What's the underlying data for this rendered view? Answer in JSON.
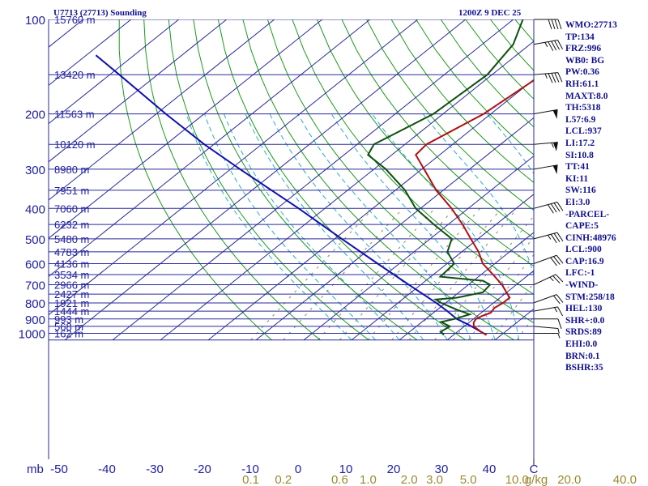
{
  "header": {
    "station": "U7713 (27713) Sounding",
    "time": "1200Z  9 DEC 25"
  },
  "side_panel": [
    "WMO:27713",
    "TP:134",
    "FRZ:996",
    "WB0: BG",
    "PW:0.36",
    "RH:61.1",
    "MAXT:8.0",
    "TH:5318",
    "L57:6.9",
    "LCL:937",
    "LI:17.2",
    "SI:10.8",
    "TT:41",
    "KI:11",
    "SW:116",
    "EI:3.0",
    "-PARCEL-",
    "CAPE:5",
    "CINH:48976",
    "LCL:900",
    "CAP:16.9",
    "LFC:-1",
    "-WIND-",
    "STM:258/18",
    "HEL:130",
    "SHR+:0.0",
    "SRDS:89",
    "EHI:0.0",
    "BRN:0.1",
    "BSHR:35"
  ],
  "colors": {
    "isobar": "#2a2a9a",
    "isotherm": "#2a2a9a",
    "dry_adiabat": "#1a9a1a",
    "moist_adiabat": "#2aaaca",
    "mixing_ratio": "#8a8a50",
    "temperature": "#b01010",
    "dewpoint": "#105010",
    "parcel": "#1010b0",
    "wind_barb": "#101010"
  },
  "chart_data": {
    "type": "skew-t",
    "pressure_label": "mb",
    "mixing_ratio_unit": "g/kg",
    "pressure_levels": [
      100,
      200,
      300,
      400,
      500,
      600,
      700,
      800,
      900,
      1000
    ],
    "pressure_range": [
      100,
      1050
    ],
    "temperature_ticks": [
      -50,
      -40,
      -30,
      -20,
      -10,
      0,
      10,
      20,
      30,
      40
    ],
    "temperature_unit_label": "C",
    "mixing_ratio_ticks": [
      {
        "label": "0.1",
        "value": 0.1
      },
      {
        "label": "0.2",
        "value": 0.2
      },
      {
        "label": "0.6",
        "value": 0.6
      },
      {
        "label": "1.0",
        "value": 1.0
      },
      {
        "label": "2.0",
        "value": 2.0
      },
      {
        "label": "3.0",
        "value": 3.0
      },
      {
        "label": "5.0",
        "value": 5.0
      },
      {
        "label": "10.0",
        "value": 10.0
      },
      {
        "label": "20.0",
        "value": 20.0
      },
      {
        "label": "40.0",
        "value": 40.0
      }
    ],
    "heights": [
      {
        "p": 100,
        "label": "15760 m"
      },
      {
        "p": 150,
        "label": "13420 m"
      },
      {
        "p": 200,
        "label": "11563 m"
      },
      {
        "p": 250,
        "label": "10120 m"
      },
      {
        "p": 300,
        "label": "8980 m"
      },
      {
        "p": 350,
        "label": "7951 m"
      },
      {
        "p": 400,
        "label": "7060 m"
      },
      {
        "p": 450,
        "label": "6232 m"
      },
      {
        "p": 500,
        "label": "5480 m"
      },
      {
        "p": 550,
        "label": "4783 m"
      },
      {
        "p": 600,
        "label": "4136 m"
      },
      {
        "p": 650,
        "label": "3534 m"
      },
      {
        "p": 700,
        "label": "2966 m"
      },
      {
        "p": 750,
        "label": "2427 m"
      },
      {
        "p": 800,
        "label": "1921 m"
      },
      {
        "p": 850,
        "label": "1444 m"
      },
      {
        "p": 900,
        "label": "993 m"
      },
      {
        "p": 950,
        "label": "568 m"
      },
      {
        "p": 1000,
        "label": "162 m"
      }
    ],
    "temperature": [
      {
        "p": 1012,
        "t": 6.9
      },
      {
        "p": 990,
        "t": 5.0
      },
      {
        "p": 950,
        "t": 2.0
      },
      {
        "p": 925,
        "t": 1.0
      },
      {
        "p": 900,
        "t": 0.5
      },
      {
        "p": 880,
        "t": 1.0
      },
      {
        "p": 860,
        "t": 2.0
      },
      {
        "p": 830,
        "t": 1.5
      },
      {
        "p": 800,
        "t": 2.0
      },
      {
        "p": 770,
        "t": 2.0
      },
      {
        "p": 700,
        "t": -3.0
      },
      {
        "p": 650,
        "t": -7.5
      },
      {
        "p": 600,
        "t": -12.5
      },
      {
        "p": 550,
        "t": -16.5
      },
      {
        "p": 500,
        "t": -21.5
      },
      {
        "p": 450,
        "t": -27.0
      },
      {
        "p": 400,
        "t": -33.5
      },
      {
        "p": 350,
        "t": -41.5
      },
      {
        "p": 300,
        "t": -49.5
      },
      {
        "p": 270,
        "t": -55.0
      },
      {
        "p": 250,
        "t": -55.5
      },
      {
        "p": 200,
        "t": -51.5
      },
      {
        "p": 150,
        "t": -49.5
      },
      {
        "p": 120,
        "t": -50.5
      },
      {
        "p": 100,
        "t": -54.0
      }
    ],
    "dewpoint": [
      {
        "p": 1012,
        "t": -2.0
      },
      {
        "p": 990,
        "t": -3.5
      },
      {
        "p": 950,
        "t": -3.0
      },
      {
        "p": 920,
        "t": -6.0
      },
      {
        "p": 900,
        "t": -4.0
      },
      {
        "p": 870,
        "t": -2.0
      },
      {
        "p": 840,
        "t": -6.0
      },
      {
        "p": 800,
        "t": -11.0
      },
      {
        "p": 780,
        "t": -13.0
      },
      {
        "p": 770,
        "t": -9.0
      },
      {
        "p": 740,
        "t": -5.0
      },
      {
        "p": 700,
        "t": -5.5
      },
      {
        "p": 680,
        "t": -8.0
      },
      {
        "p": 660,
        "t": -18.0
      },
      {
        "p": 600,
        "t": -18.5
      },
      {
        "p": 550,
        "t": -23.0
      },
      {
        "p": 500,
        "t": -25.5
      },
      {
        "p": 450,
        "t": -33.0
      },
      {
        "p": 400,
        "t": -41.0
      },
      {
        "p": 350,
        "t": -48.0
      },
      {
        "p": 300,
        "t": -57.5
      },
      {
        "p": 270,
        "t": -65.0
      },
      {
        "p": 250,
        "t": -66.5
      },
      {
        "p": 200,
        "t": -62.0
      },
      {
        "p": 150,
        "t": -61.0
      },
      {
        "p": 120,
        "t": -63.5
      },
      {
        "p": 100,
        "t": -68.0
      }
    ],
    "parcel": [
      {
        "p": 1012,
        "t": 6.9
      },
      {
        "p": 937,
        "t": 0.3
      },
      {
        "p": 900,
        "t": -3.5
      },
      {
        "p": 850,
        "t": -7.5
      },
      {
        "p": 800,
        "t": -12.0
      },
      {
        "p": 700,
        "t": -22.5
      },
      {
        "p": 600,
        "t": -34.5
      },
      {
        "p": 500,
        "t": -48.5
      },
      {
        "p": 400,
        "t": -65.5
      },
      {
        "p": 300,
        "t": -88.0
      },
      {
        "p": 250,
        "t": -102.0
      },
      {
        "p": 200,
        "t": -118.0
      },
      {
        "p": 150,
        "t": -138.0
      },
      {
        "p": 130,
        "t": -148.0
      }
    ],
    "wind_barbs": [
      {
        "p": 1000,
        "dir": 270,
        "kt": 5
      },
      {
        "p": 950,
        "dir": 275,
        "kt": 5
      },
      {
        "p": 900,
        "dir": 270,
        "kt": 10
      },
      {
        "p": 850,
        "dir": 260,
        "kt": 15
      },
      {
        "p": 800,
        "dir": 250,
        "kt": 20
      },
      {
        "p": 700,
        "dir": 245,
        "kt": 25
      },
      {
        "p": 600,
        "dir": 250,
        "kt": 30
      },
      {
        "p": 500,
        "dir": 255,
        "kt": 35
      },
      {
        "p": 400,
        "dir": 255,
        "kt": 40
      },
      {
        "p": 300,
        "dir": 260,
        "kt": 50
      },
      {
        "p": 250,
        "dir": 265,
        "kt": 55
      },
      {
        "p": 200,
        "dir": 260,
        "kt": 50
      },
      {
        "p": 150,
        "dir": 265,
        "kt": 45
      },
      {
        "p": 120,
        "dir": 260,
        "kt": 45
      },
      {
        "p": 100,
        "dir": 270,
        "kt": 40
      }
    ]
  }
}
